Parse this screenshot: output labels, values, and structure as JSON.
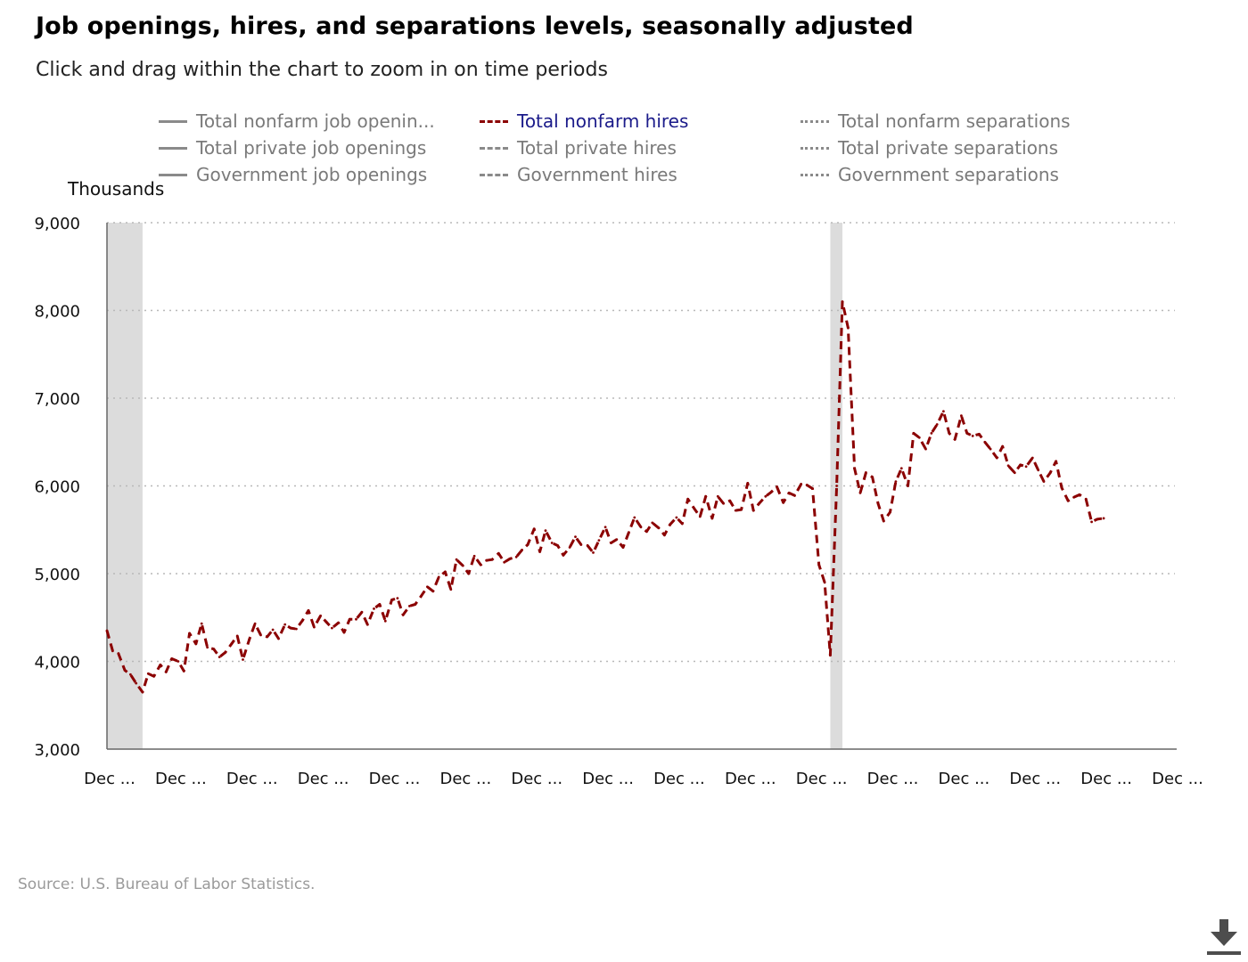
{
  "header": {
    "title": "Job openings, hires, and separations levels, seasonally adjusted",
    "subtitle": "Click and drag within the chart to zoom in on time periods"
  },
  "legend": [
    {
      "label": "Total nonfarm job openin...",
      "style": "solid",
      "active": false
    },
    {
      "label": "Total private job openings",
      "style": "solid",
      "active": false
    },
    {
      "label": "Government job openings",
      "style": "solid",
      "active": false
    },
    {
      "label": "Total nonfarm hires",
      "style": "dashed",
      "active": true
    },
    {
      "label": "Total private hires",
      "style": "dashed",
      "active": false
    },
    {
      "label": "Government hires",
      "style": "dashed",
      "active": false
    },
    {
      "label": "Total nonfarm separations",
      "style": "dotted",
      "active": false
    },
    {
      "label": "Total private separations",
      "style": "dotted",
      "active": false
    },
    {
      "label": "Government separations",
      "style": "dotted",
      "active": false
    }
  ],
  "footer": {
    "source": "Source: U.S. Bureau of Labor Statistics."
  },
  "icons": {
    "download": "download-icon"
  },
  "colors": {
    "series": "#8b0000",
    "legend_active": "#1b1b8a",
    "legend_inactive": "#7a7a7a",
    "recession": "#dcdcdc",
    "grid": "#b8b8b8"
  },
  "chart_data": {
    "type": "line",
    "ylabel": "Thousands",
    "ylim": [
      3000,
      9000
    ],
    "yticks": [
      3000,
      4000,
      5000,
      6000,
      7000,
      8000,
      9000
    ],
    "ytick_labels": [
      "3,000",
      "4,000",
      "5,000",
      "6,000",
      "7,000",
      "8,000",
      "9,000"
    ],
    "xlim": [
      2009.92,
      2024.92
    ],
    "xticks": [
      2009.92,
      2010.92,
      2011.92,
      2012.92,
      2013.92,
      2014.92,
      2015.92,
      2016.92,
      2017.92,
      2018.92,
      2019.92,
      2020.92,
      2021.92,
      2022.92,
      2023.92,
      2024.92
    ],
    "xtick_labels": [
      "Dec ...",
      "Dec ...",
      "Dec ...",
      "Dec ...",
      "Dec ...",
      "Dec ...",
      "Dec ...",
      "Dec ...",
      "Dec ...",
      "Dec ...",
      "Dec ...",
      "Dec ...",
      "Dec ...",
      "Dec ...",
      "Dec ...",
      "Dec ..."
    ],
    "grid": true,
    "recessions": [
      [
        2009.92,
        2010.42
      ],
      [
        2020.08,
        2020.25
      ]
    ],
    "series": [
      {
        "name": "Total nonfarm hires",
        "style": "dashed",
        "points": [
          [
            2009.92,
            4350
          ],
          [
            2010.0,
            4120
          ],
          [
            2010.08,
            4090
          ],
          [
            2010.17,
            3900
          ],
          [
            2010.25,
            3850
          ],
          [
            2010.33,
            3750
          ],
          [
            2010.42,
            3650
          ],
          [
            2010.5,
            3860
          ],
          [
            2010.58,
            3830
          ],
          [
            2010.67,
            3960
          ],
          [
            2010.75,
            3880
          ],
          [
            2010.83,
            4030
          ],
          [
            2010.92,
            4000
          ],
          [
            2011.0,
            3890
          ],
          [
            2011.08,
            4320
          ],
          [
            2011.17,
            4200
          ],
          [
            2011.25,
            4430
          ],
          [
            2011.33,
            4160
          ],
          [
            2011.42,
            4140
          ],
          [
            2011.5,
            4050
          ],
          [
            2011.58,
            4100
          ],
          [
            2011.67,
            4200
          ],
          [
            2011.75,
            4290
          ],
          [
            2011.83,
            4020
          ],
          [
            2011.92,
            4250
          ],
          [
            2012.0,
            4430
          ],
          [
            2012.08,
            4300
          ],
          [
            2012.17,
            4280
          ],
          [
            2012.25,
            4360
          ],
          [
            2012.33,
            4260
          ],
          [
            2012.42,
            4420
          ],
          [
            2012.5,
            4380
          ],
          [
            2012.58,
            4370
          ],
          [
            2012.67,
            4470
          ],
          [
            2012.75,
            4580
          ],
          [
            2012.83,
            4390
          ],
          [
            2012.92,
            4520
          ],
          [
            2013.0,
            4450
          ],
          [
            2013.08,
            4380
          ],
          [
            2013.17,
            4440
          ],
          [
            2013.25,
            4330
          ],
          [
            2013.33,
            4480
          ],
          [
            2013.42,
            4480
          ],
          [
            2013.5,
            4560
          ],
          [
            2013.58,
            4420
          ],
          [
            2013.67,
            4600
          ],
          [
            2013.75,
            4650
          ],
          [
            2013.83,
            4460
          ],
          [
            2013.92,
            4700
          ],
          [
            2014.0,
            4720
          ],
          [
            2014.08,
            4530
          ],
          [
            2014.17,
            4630
          ],
          [
            2014.25,
            4650
          ],
          [
            2014.33,
            4740
          ],
          [
            2014.42,
            4850
          ],
          [
            2014.5,
            4800
          ],
          [
            2014.58,
            4960
          ],
          [
            2014.67,
            5020
          ],
          [
            2014.75,
            4820
          ],
          [
            2014.83,
            5160
          ],
          [
            2014.92,
            5090
          ],
          [
            2015.0,
            5000
          ],
          [
            2015.08,
            5200
          ],
          [
            2015.17,
            5100
          ],
          [
            2015.25,
            5150
          ],
          [
            2015.33,
            5160
          ],
          [
            2015.42,
            5230
          ],
          [
            2015.5,
            5130
          ],
          [
            2015.58,
            5170
          ],
          [
            2015.67,
            5190
          ],
          [
            2015.75,
            5270
          ],
          [
            2015.83,
            5330
          ],
          [
            2015.92,
            5510
          ],
          [
            2016.0,
            5250
          ],
          [
            2016.08,
            5490
          ],
          [
            2016.17,
            5350
          ],
          [
            2016.25,
            5320
          ],
          [
            2016.33,
            5210
          ],
          [
            2016.42,
            5300
          ],
          [
            2016.5,
            5420
          ],
          [
            2016.58,
            5330
          ],
          [
            2016.67,
            5320
          ],
          [
            2016.75,
            5240
          ],
          [
            2016.83,
            5380
          ],
          [
            2016.92,
            5530
          ],
          [
            2017.0,
            5350
          ],
          [
            2017.08,
            5390
          ],
          [
            2017.17,
            5300
          ],
          [
            2017.25,
            5470
          ],
          [
            2017.33,
            5640
          ],
          [
            2017.42,
            5530
          ],
          [
            2017.5,
            5480
          ],
          [
            2017.58,
            5580
          ],
          [
            2017.67,
            5520
          ],
          [
            2017.75,
            5440
          ],
          [
            2017.83,
            5560
          ],
          [
            2017.92,
            5640
          ],
          [
            2018.0,
            5570
          ],
          [
            2018.08,
            5850
          ],
          [
            2018.17,
            5740
          ],
          [
            2018.25,
            5650
          ],
          [
            2018.33,
            5880
          ],
          [
            2018.42,
            5630
          ],
          [
            2018.5,
            5880
          ],
          [
            2018.58,
            5800
          ],
          [
            2018.67,
            5830
          ],
          [
            2018.75,
            5720
          ],
          [
            2018.83,
            5730
          ],
          [
            2018.92,
            6030
          ],
          [
            2019.0,
            5720
          ],
          [
            2019.08,
            5800
          ],
          [
            2019.17,
            5880
          ],
          [
            2019.25,
            5930
          ],
          [
            2019.33,
            5990
          ],
          [
            2019.42,
            5810
          ],
          [
            2019.5,
            5920
          ],
          [
            2019.58,
            5890
          ],
          [
            2019.67,
            6020
          ],
          [
            2019.75,
            6010
          ],
          [
            2019.83,
            5970
          ],
          [
            2019.92,
            5100
          ],
          [
            2020.0,
            4900
          ],
          [
            2020.08,
            4070
          ],
          [
            2020.17,
            6000
          ],
          [
            2020.25,
            8100
          ],
          [
            2020.33,
            7800
          ],
          [
            2020.42,
            6200
          ],
          [
            2020.5,
            5920
          ],
          [
            2020.58,
            6150
          ],
          [
            2020.67,
            6100
          ],
          [
            2020.75,
            5800
          ],
          [
            2020.83,
            5600
          ],
          [
            2020.92,
            5700
          ],
          [
            2021.0,
            6050
          ],
          [
            2021.08,
            6200
          ],
          [
            2021.17,
            6000
          ],
          [
            2021.25,
            6600
          ],
          [
            2021.33,
            6550
          ],
          [
            2021.42,
            6420
          ],
          [
            2021.5,
            6600
          ],
          [
            2021.58,
            6700
          ],
          [
            2021.67,
            6850
          ],
          [
            2021.75,
            6600
          ],
          [
            2021.83,
            6530
          ],
          [
            2021.92,
            6800
          ],
          [
            2022.0,
            6600
          ],
          [
            2022.08,
            6570
          ],
          [
            2022.17,
            6590
          ],
          [
            2022.25,
            6500
          ],
          [
            2022.33,
            6420
          ],
          [
            2022.42,
            6320
          ],
          [
            2022.5,
            6450
          ],
          [
            2022.58,
            6230
          ],
          [
            2022.67,
            6150
          ],
          [
            2022.75,
            6240
          ],
          [
            2022.83,
            6220
          ],
          [
            2022.92,
            6320
          ],
          [
            2023.0,
            6180
          ],
          [
            2023.08,
            6050
          ],
          [
            2023.17,
            6150
          ],
          [
            2023.25,
            6280
          ],
          [
            2023.33,
            5980
          ],
          [
            2023.42,
            5830
          ],
          [
            2023.5,
            5870
          ],
          [
            2023.58,
            5900
          ],
          [
            2023.67,
            5850
          ],
          [
            2023.75,
            5590
          ],
          [
            2023.83,
            5620
          ],
          [
            2023.92,
            5630
          ]
        ]
      }
    ]
  }
}
